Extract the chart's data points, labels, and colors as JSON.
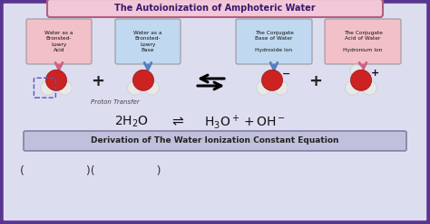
{
  "title": "The Autoionization of Amphoteric Water",
  "title_color": "#3a1a6e",
  "bg_outer": "#5a3590",
  "bg_inner": "#ddddf0",
  "title_box_color": "#f2c8d8",
  "title_box_edge": "#b06080",
  "label_box1_color": "#f2c0c8",
  "label_box2_color": "#c0d8f0",
  "label_box3_color": "#c0d8f0",
  "label_box4_color": "#f2c0c8",
  "arrow1_color": "#d06080",
  "arrow2_color": "#5080c0",
  "arrow3_color": "#5080c0",
  "arrow4_color": "#d06080",
  "label1": "Water as a\nBronsted-\nLowry\nAcid",
  "label2": "Water as a\nBronsted-\nLowry\nBase",
  "label3": "The Conjugate\nBase of Water\n\nHydroxide Ion",
  "label4": "The Conjugate\nAcid of Water\n\nHydronium Ion",
  "proton_transfer": "Proton Transfer",
  "bottom_box": "Derivation of The Water Ionization Constant Equation",
  "bottom_box_color": "#c0c0dc",
  "bottom_box_edge": "#8080a8"
}
